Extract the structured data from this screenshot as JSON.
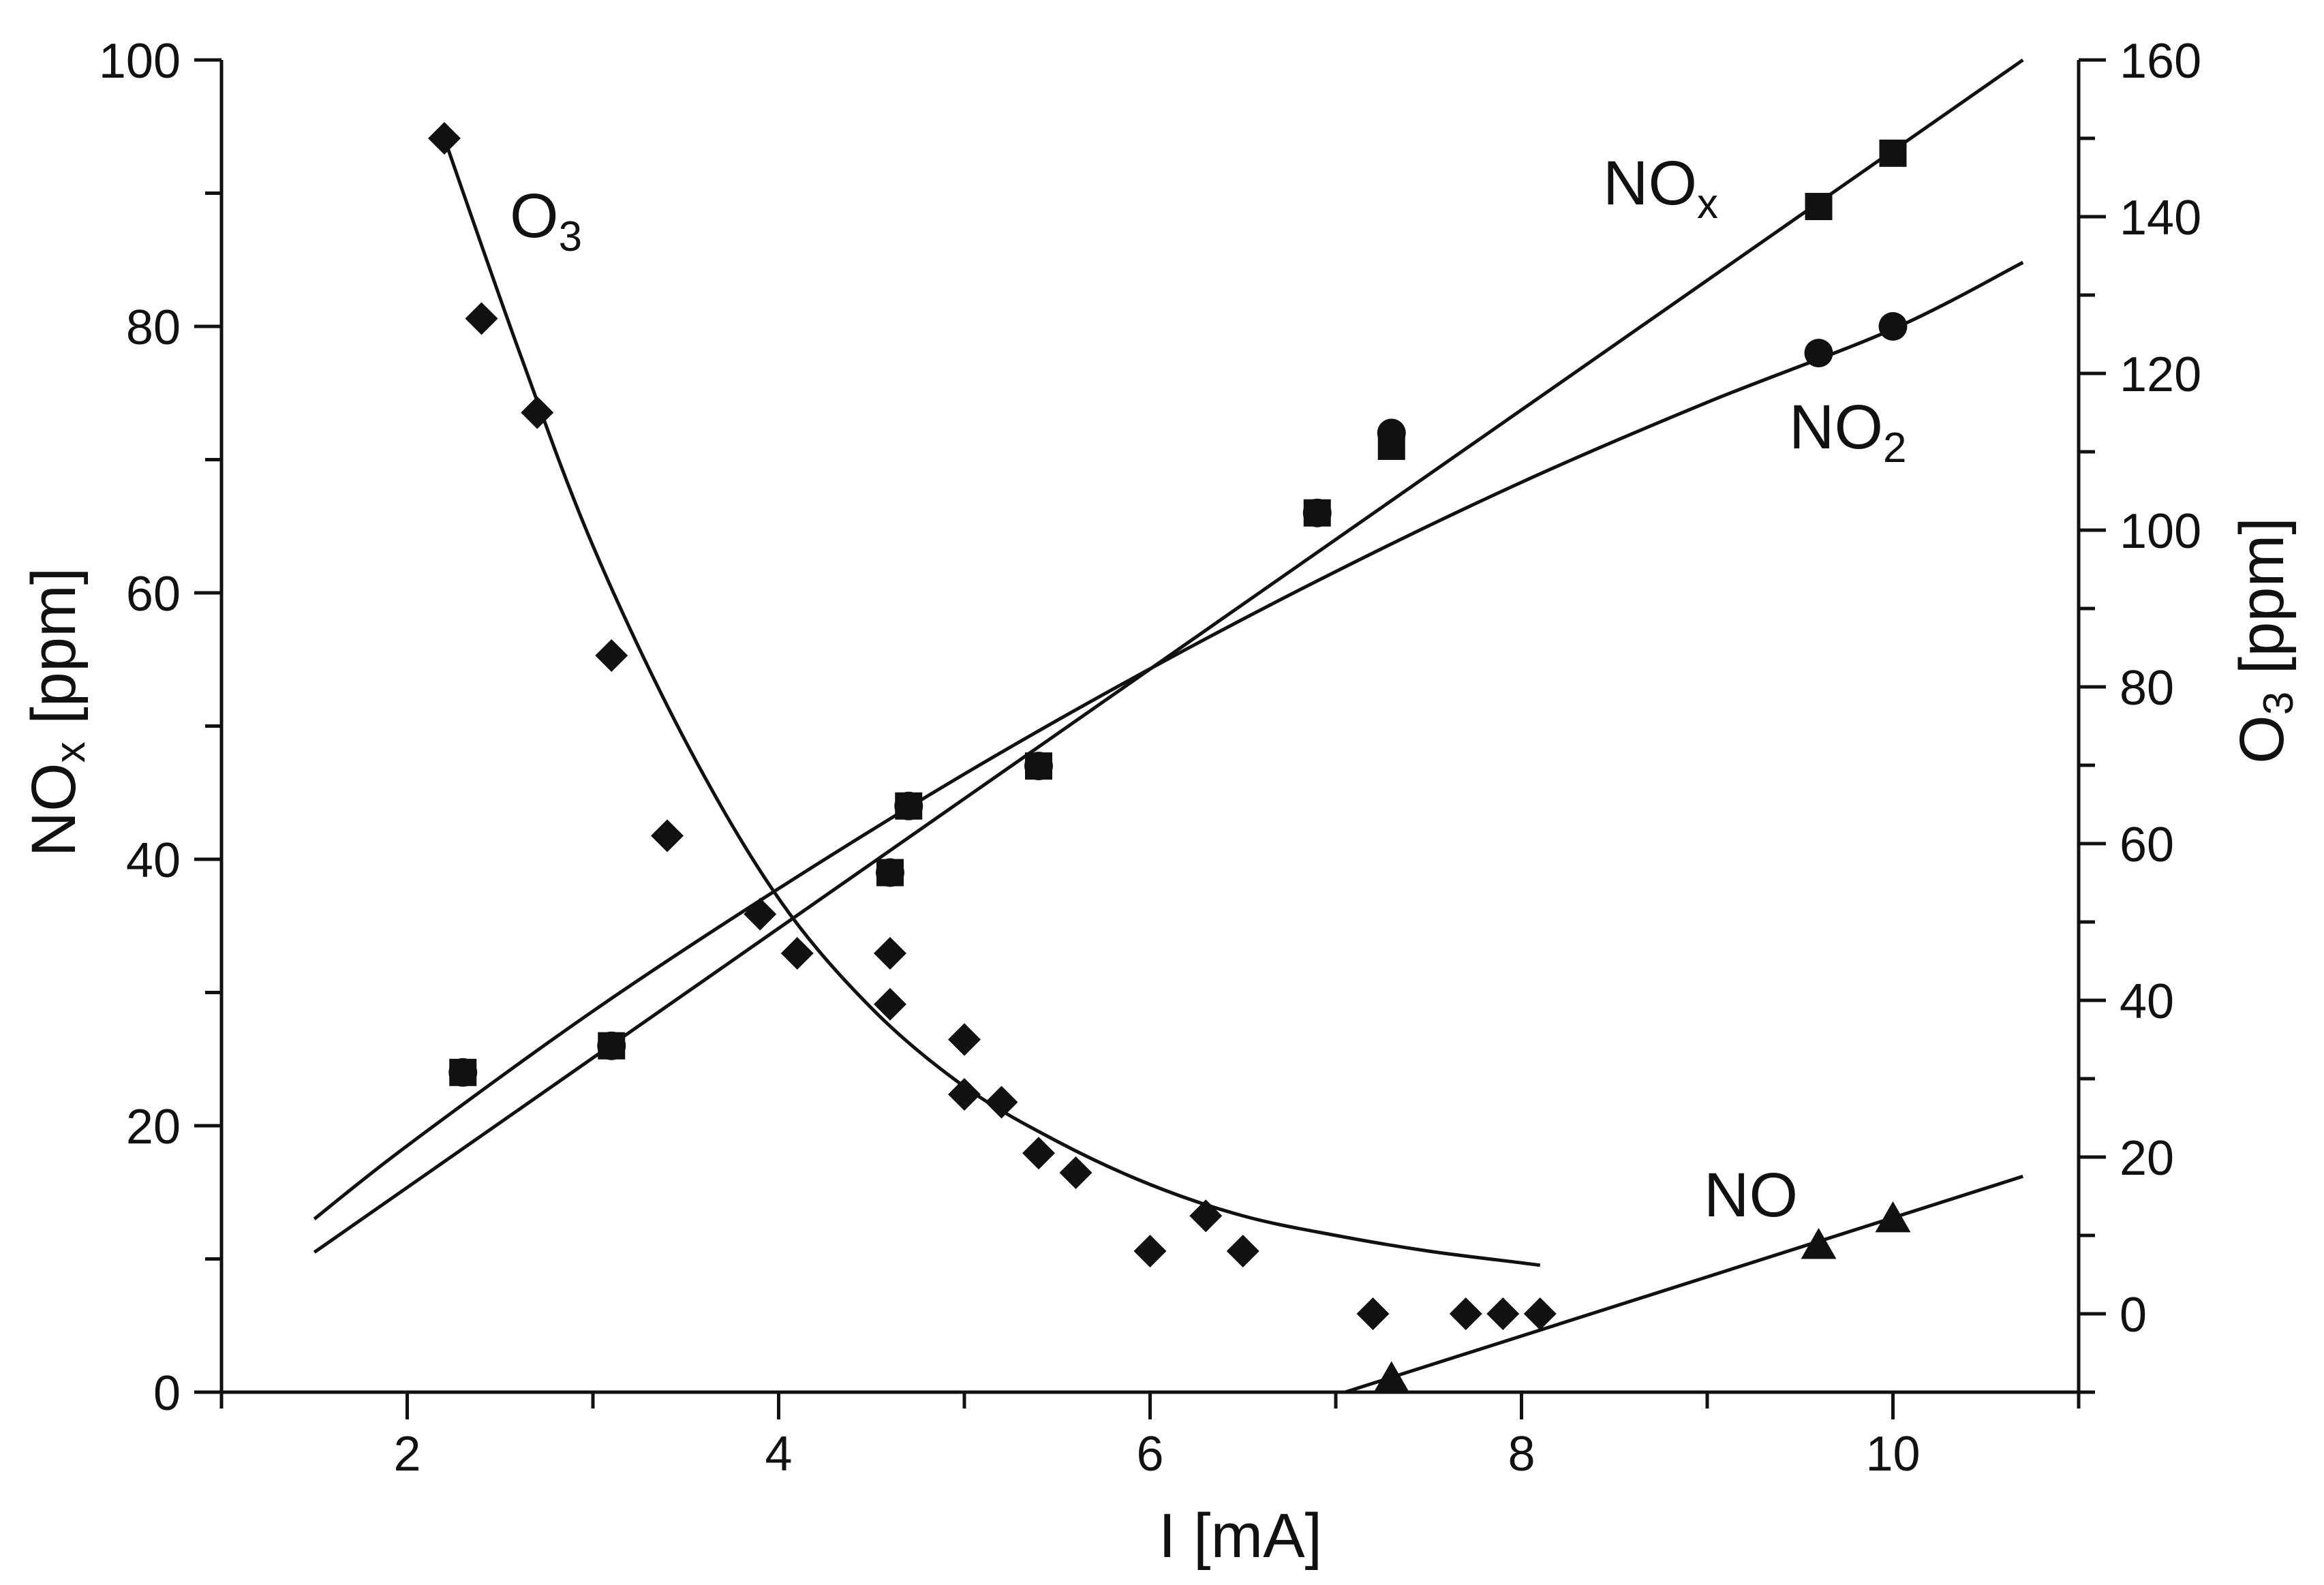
{
  "chart_data": {
    "type": "scatter",
    "x_axis": {
      "label": "I [mA]",
      "range": [
        1,
        11
      ],
      "ticks": [
        2,
        4,
        6,
        8,
        10
      ]
    },
    "y_left": {
      "label_main": "NO",
      "label_sub": "x",
      "label_unit": " [ppm]",
      "range": [
        0,
        100
      ],
      "ticks": [
        0,
        20,
        40,
        60,
        80,
        100
      ]
    },
    "y_right": {
      "label_main": "O",
      "label_sub": "3",
      "label_unit": " [ppm]",
      "range": [
        -10,
        160
      ],
      "ticks": [
        0,
        20,
        40,
        60,
        80,
        100,
        120,
        140,
        160
      ]
    },
    "series": [
      {
        "name": "O3",
        "label_main": "O",
        "label_sub": "3",
        "axis": "right",
        "marker": "diamond",
        "points": [
          [
            2.2,
            150
          ],
          [
            2.4,
            127
          ],
          [
            2.7,
            115
          ],
          [
            3.1,
            84
          ],
          [
            3.4,
            61
          ],
          [
            3.9,
            51
          ],
          [
            4.1,
            46
          ],
          [
            4.6,
            46
          ],
          [
            4.6,
            39.5
          ],
          [
            5.0,
            35
          ],
          [
            5.0,
            28
          ],
          [
            5.2,
            27
          ],
          [
            5.4,
            20.5
          ],
          [
            5.6,
            18
          ],
          [
            6.0,
            8
          ],
          [
            6.3,
            12.5
          ],
          [
            6.5,
            8
          ],
          [
            7.2,
            0
          ],
          [
            7.7,
            0
          ],
          [
            7.9,
            0
          ],
          [
            8.1,
            0
          ]
        ],
        "fit": [
          [
            2.2,
            150
          ],
          [
            2.6,
            123
          ],
          [
            3.0,
            98
          ],
          [
            3.5,
            73
          ],
          [
            4.0,
            53
          ],
          [
            4.5,
            39
          ],
          [
            5.0,
            29
          ],
          [
            5.5,
            22
          ],
          [
            6.0,
            16.5
          ],
          [
            6.5,
            12.5
          ],
          [
            7.0,
            10
          ],
          [
            7.5,
            8
          ],
          [
            8.0,
            6.5
          ],
          [
            8.1,
            6.2
          ]
        ]
      },
      {
        "name": "NOx",
        "label_main": "NO",
        "label_sub": "x",
        "axis": "left",
        "marker": "square",
        "points": [
          [
            2.3,
            24
          ],
          [
            3.1,
            26
          ],
          [
            4.6,
            39
          ],
          [
            4.7,
            44
          ],
          [
            5.4,
            47
          ],
          [
            6.9,
            66
          ],
          [
            7.3,
            71
          ],
          [
            9.6,
            89
          ],
          [
            10.0,
            93
          ]
        ],
        "fit": [
          [
            1.5,
            10.5
          ],
          [
            10.7,
            100
          ]
        ]
      },
      {
        "name": "NO2",
        "label_main": "NO",
        "label_sub": "2",
        "axis": "left",
        "marker": "circle",
        "points": [
          [
            2.3,
            24
          ],
          [
            3.1,
            26
          ],
          [
            4.6,
            39
          ],
          [
            4.7,
            44
          ],
          [
            5.4,
            47
          ],
          [
            6.9,
            66
          ],
          [
            7.3,
            72
          ],
          [
            9.6,
            78
          ],
          [
            10.0,
            80
          ]
        ],
        "fit": [
          [
            1.5,
            13
          ],
          [
            2.0,
            18.5
          ],
          [
            3.0,
            28.6
          ],
          [
            4.0,
            37.8
          ],
          [
            5.0,
            46.4
          ],
          [
            6.0,
            54.3
          ],
          [
            7.0,
            61.6
          ],
          [
            8.0,
            68.3
          ],
          [
            9.0,
            74.3
          ],
          [
            10.0,
            79.8
          ],
          [
            10.7,
            84.8
          ]
        ]
      },
      {
        "name": "NO",
        "label_main": "NO",
        "label_sub": "",
        "axis": "left",
        "marker": "triangle",
        "points": [
          [
            7.3,
            1
          ],
          [
            9.6,
            11
          ],
          [
            10.0,
            13
          ]
        ],
        "fit": [
          [
            7.05,
            0
          ],
          [
            10.7,
            16.2
          ]
        ]
      }
    ]
  }
}
